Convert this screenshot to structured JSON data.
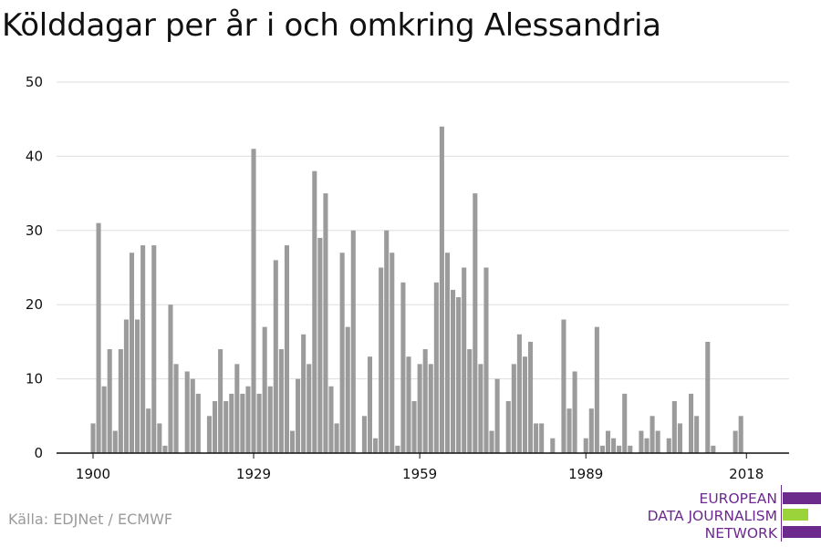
{
  "title": "Kölddagar per år i och omkring Alessandria",
  "source": "Källa: EDJNet / ECMWF",
  "logo": {
    "lines": [
      "EUROPEAN",
      "DATA JOURNALISM",
      "NETWORK"
    ]
  },
  "colors": {
    "bar": "#9b9b9b",
    "grid": "#dddddd",
    "axis": "#111111",
    "logo_purple": "#6b2a8c",
    "logo_green": "#9bd43a"
  },
  "chart_data": {
    "type": "bar",
    "title": "Kölddagar per år i och omkring Alessandria",
    "xlabel": "",
    "ylabel": "",
    "ylim": [
      0,
      50
    ],
    "yticks": [
      0,
      10,
      20,
      30,
      40,
      50
    ],
    "xticks": [
      1900,
      1929,
      1959,
      1989,
      2018
    ],
    "grid": true,
    "x": [
      1900,
      1901,
      1902,
      1903,
      1904,
      1905,
      1906,
      1907,
      1908,
      1909,
      1910,
      1911,
      1912,
      1913,
      1914,
      1915,
      1916,
      1917,
      1918,
      1919,
      1920,
      1921,
      1922,
      1923,
      1924,
      1925,
      1926,
      1927,
      1928,
      1929,
      1930,
      1931,
      1932,
      1933,
      1934,
      1935,
      1936,
      1937,
      1938,
      1939,
      1940,
      1941,
      1942,
      1943,
      1944,
      1945,
      1946,
      1947,
      1948,
      1949,
      1950,
      1951,
      1952,
      1953,
      1954,
      1955,
      1956,
      1957,
      1958,
      1959,
      1960,
      1961,
      1962,
      1963,
      1964,
      1965,
      1966,
      1967,
      1968,
      1969,
      1970,
      1971,
      1972,
      1973,
      1974,
      1975,
      1976,
      1977,
      1978,
      1979,
      1980,
      1981,
      1982,
      1983,
      1984,
      1985,
      1986,
      1987,
      1988,
      1989,
      1990,
      1991,
      1992,
      1993,
      1994,
      1995,
      1996,
      1997,
      1998,
      1999,
      2000,
      2001,
      2002,
      2003,
      2004,
      2005,
      2006,
      2007,
      2008,
      2009,
      2010,
      2011,
      2012,
      2013,
      2014,
      2015,
      2016,
      2017,
      2018,
      2019,
      2020
    ],
    "values": [
      4,
      31,
      9,
      14,
      3,
      14,
      18,
      27,
      18,
      28,
      6,
      28,
      4,
      1,
      20,
      12,
      0,
      11,
      10,
      8,
      0,
      5,
      7,
      14,
      7,
      8,
      12,
      8,
      9,
      41,
      8,
      17,
      9,
      26,
      14,
      28,
      3,
      10,
      16,
      12,
      38,
      29,
      35,
      9,
      4,
      27,
      17,
      30,
      0,
      5,
      13,
      2,
      25,
      30,
      27,
      1,
      23,
      13,
      7,
      12,
      14,
      12,
      23,
      44,
      27,
      22,
      21,
      25,
      14,
      35,
      12,
      25,
      3,
      10,
      0,
      7,
      12,
      16,
      13,
      15,
      4,
      4,
      0,
      2,
      0,
      18,
      6,
      11,
      0,
      2,
      6,
      17,
      1,
      3,
      2,
      1,
      8,
      1,
      0,
      3,
      2,
      5,
      3,
      0,
      2,
      7,
      4,
      0,
      8,
      5,
      0,
      15,
      1,
      0,
      0,
      0,
      3,
      5,
      0,
      0,
      0
    ]
  }
}
